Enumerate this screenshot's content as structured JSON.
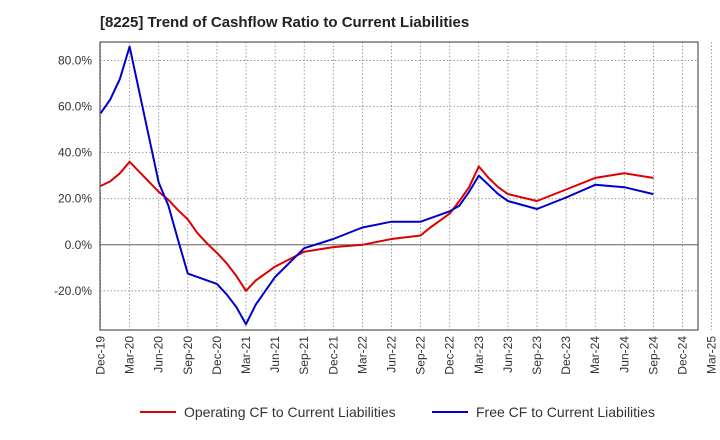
{
  "chart_data": {
    "type": "line",
    "title": "[8225]  Trend of Cashflow Ratio to Current Liabilities",
    "xlabel": "",
    "ylabel": "",
    "x_ticks": [
      "Dec-19",
      "Mar-20",
      "Jun-20",
      "Sep-20",
      "Dec-20",
      "Mar-21",
      "Jun-21",
      "Sep-21",
      "Dec-21",
      "Mar-22",
      "Jun-22",
      "Sep-22",
      "Dec-22",
      "Mar-23",
      "Jun-23",
      "Sep-23",
      "Dec-23",
      "Mar-24",
      "Jun-24",
      "Sep-24",
      "Dec-24",
      "Mar-25"
    ],
    "y_ticks": [
      "80.0%",
      "60.0%",
      "40.0%",
      "20.0%",
      "0.0%",
      "-20.0%"
    ],
    "y_tick_values": [
      80,
      60,
      40,
      20,
      0,
      -20
    ],
    "ylim": [
      -37,
      88
    ],
    "grid": true,
    "legend_position": "bottom",
    "series": [
      {
        "name": "Operating CF to Current Liabilities",
        "color": "#dd0000",
        "points": [
          [
            "Dec-19",
            25.5
          ],
          [
            "Jan-20",
            27.5
          ],
          [
            "Feb-20",
            31.0
          ],
          [
            "Mar-20",
            36.0
          ],
          [
            "Jun-20",
            23.0
          ],
          [
            "Jul-20",
            19.5
          ],
          [
            "Aug-20",
            15.0
          ],
          [
            "Sep-20",
            11.0
          ],
          [
            "Oct-20",
            5.0
          ],
          [
            "Nov-20",
            0.5
          ],
          [
            "Dec-20",
            -3.5
          ],
          [
            "Jan-21",
            -8.0
          ],
          [
            "Feb-21",
            -13.5
          ],
          [
            "Mar-21",
            -20.0
          ],
          [
            "Apr-21",
            -15.5
          ],
          [
            "May-21",
            -12.5
          ],
          [
            "Jun-21",
            -9.5
          ],
          [
            "Sep-21",
            -3.0
          ],
          [
            "Dec-21",
            -1.0
          ],
          [
            "Mar-22",
            0.0
          ],
          [
            "Jun-22",
            2.5
          ],
          [
            "Sep-22",
            4.0
          ],
          [
            "Oct-22",
            7.5
          ],
          [
            "Nov-22",
            10.5
          ],
          [
            "Dec-22",
            13.5
          ],
          [
            "Jan-23",
            19.0
          ],
          [
            "Feb-23",
            25.0
          ],
          [
            "Mar-23",
            34.0
          ],
          [
            "Apr-23",
            29.0
          ],
          [
            "May-23",
            25.0
          ],
          [
            "Jun-23",
            22.0
          ],
          [
            "Sep-23",
            19.0
          ],
          [
            "Dec-23",
            24.0
          ],
          [
            "Mar-24",
            29.0
          ],
          [
            "Jun-24",
            31.0
          ],
          [
            "Sep-24",
            29.0
          ]
        ]
      },
      {
        "name": "Free CF to Current Liabilities",
        "color": "#0000cc",
        "points": [
          [
            "Dec-19",
            57.0
          ],
          [
            "Jan-20",
            63.0
          ],
          [
            "Feb-20",
            72.0
          ],
          [
            "Mar-20",
            86.0
          ],
          [
            "Jun-20",
            27.0
          ],
          [
            "Jul-20",
            17.0
          ],
          [
            "Aug-20",
            2.0
          ],
          [
            "Sep-20",
            -12.5
          ],
          [
            "Dec-20",
            -17.0
          ],
          [
            "Jan-21",
            -21.5
          ],
          [
            "Feb-21",
            -27.0
          ],
          [
            "Mar-21",
            -34.5
          ],
          [
            "Apr-21",
            -26.0
          ],
          [
            "May-21",
            -20.0
          ],
          [
            "Jun-21",
            -14.0
          ],
          [
            "Sep-21",
            -1.5
          ],
          [
            "Dec-21",
            2.5
          ],
          [
            "Mar-22",
            7.5
          ],
          [
            "Jun-22",
            10.0
          ],
          [
            "Sep-22",
            10.0
          ],
          [
            "Dec-22",
            14.5
          ],
          [
            "Jan-23",
            17.0
          ],
          [
            "Feb-23",
            23.0
          ],
          [
            "Mar-23",
            30.0
          ],
          [
            "Apr-23",
            26.0
          ],
          [
            "May-23",
            22.0
          ],
          [
            "Jun-23",
            19.0
          ],
          [
            "Sep-23",
            15.5
          ],
          [
            "Dec-23",
            20.5
          ],
          [
            "Mar-24",
            26.0
          ],
          [
            "Jun-24",
            25.0
          ],
          [
            "Sep-24",
            22.0
          ]
        ]
      }
    ]
  },
  "legend": {
    "operating_label": "Operating CF to Current Liabilities",
    "free_label": "Free CF to Current Liabilities"
  }
}
